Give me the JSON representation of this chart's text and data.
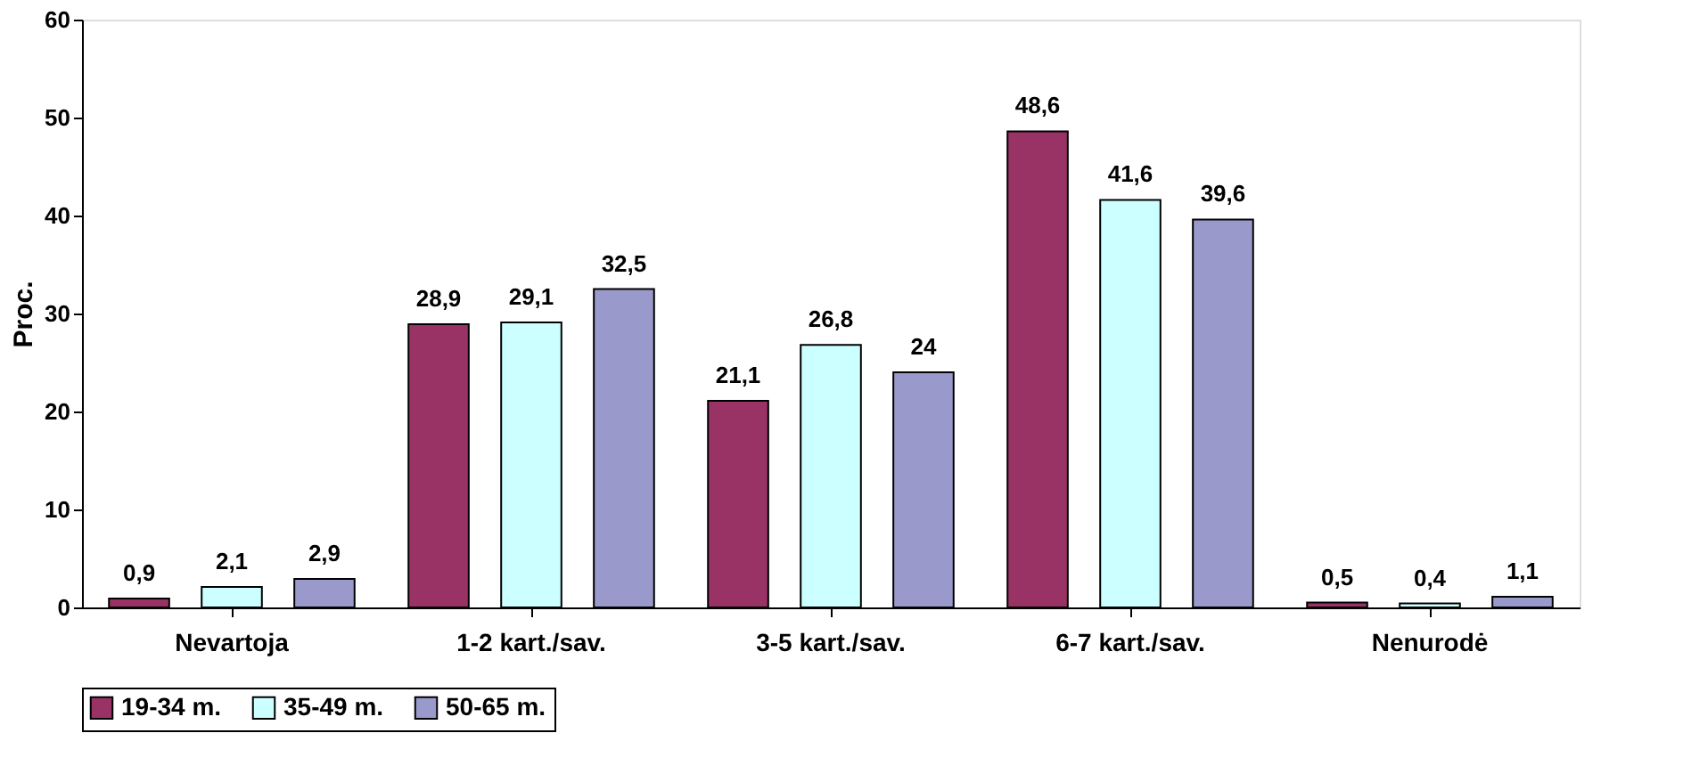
{
  "chart_data": {
    "type": "bar",
    "ylabel": "Proc.",
    "categories": [
      "Nevartoja",
      "1-2 kart./sav.",
      "3-5 kart./sav.",
      "6-7 kart./sav.",
      "Nenurodė"
    ],
    "series": [
      {
        "name": "19-34 m.",
        "color": "#993366",
        "values": [
          0.9,
          28.9,
          21.1,
          48.6,
          0.5
        ],
        "value_labels": [
          "0,9",
          "28,9",
          "21,1",
          "48,6",
          "0,5"
        ]
      },
      {
        "name": "35-49 m.",
        "color": "#ccffff",
        "values": [
          2.1,
          29.1,
          26.8,
          41.6,
          0.4
        ],
        "value_labels": [
          "2,1",
          "29,1",
          "26,8",
          "41,6",
          "0,4"
        ]
      },
      {
        "name": "50-65 m.",
        "color": "#9999cc",
        "values": [
          2.9,
          32.5,
          24,
          39.6,
          1.1
        ],
        "value_labels": [
          "2,9",
          "32,5",
          "24",
          "39,6",
          "1,1"
        ]
      }
    ],
    "ylim": [
      0,
      60
    ],
    "yticks": [
      0,
      10,
      20,
      30,
      40,
      50,
      60
    ],
    "grid": false,
    "legend": "bottom"
  }
}
